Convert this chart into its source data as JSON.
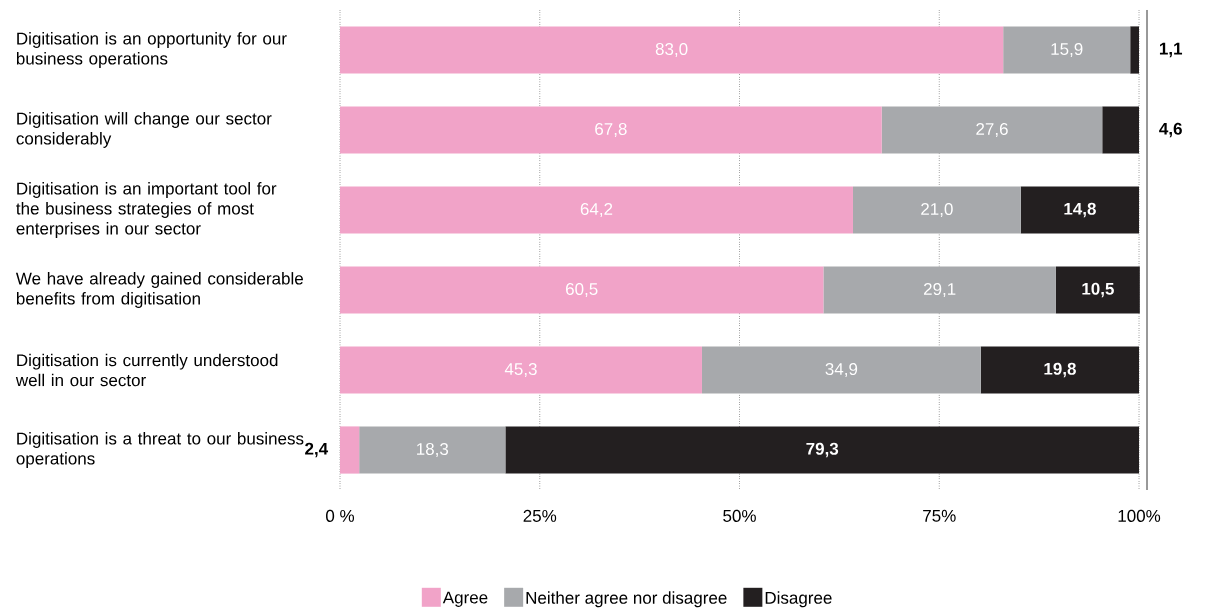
{
  "chart_data": {
    "type": "bar",
    "orientation": "horizontal",
    "stacked": true,
    "categories": [
      "Digitisation is an opportunity for our business operations",
      "Digitisation will change our sector considerably",
      "Digitisation is an important tool for the business strategies of most enterprises in our sector",
      "We have already gained considerable benefits from digitisation",
      "Digitisation is currently understood well in our sector",
      "Digitisation is a threat to our business operations"
    ],
    "series": [
      {
        "name": "Agree",
        "color": "#f1a3c8",
        "values": [
          83.0,
          67.8,
          64.2,
          60.5,
          45.3,
          2.4
        ],
        "value_labels": [
          "83,0",
          "67,8",
          "64,2",
          "60,5",
          "45,3",
          "2,4"
        ]
      },
      {
        "name": "Neither agree nor disagree",
        "color": "#a7a9ac",
        "values": [
          15.9,
          27.6,
          21.0,
          29.1,
          34.9,
          18.3
        ],
        "value_labels": [
          "15,9",
          "27,6",
          "21,0",
          "29,1",
          "34,9",
          "18,3"
        ]
      },
      {
        "name": "Disagree",
        "color": "#231f20",
        "values": [
          1.1,
          4.6,
          14.8,
          10.5,
          19.8,
          79.3
        ],
        "value_labels": [
          "1,1",
          "4,6",
          "14,8",
          "10,5",
          "19,8",
          "79,3"
        ]
      }
    ],
    "xlim": [
      0,
      101
    ],
    "xticks": [
      {
        "value": 0,
        "label": "0 %"
      },
      {
        "value": 25,
        "label": "25%"
      },
      {
        "value": 50,
        "label": "50%"
      },
      {
        "value": 75,
        "label": "75%"
      },
      {
        "value": 100,
        "label": "100%"
      }
    ],
    "grid": "x",
    "legend": "bottom"
  }
}
